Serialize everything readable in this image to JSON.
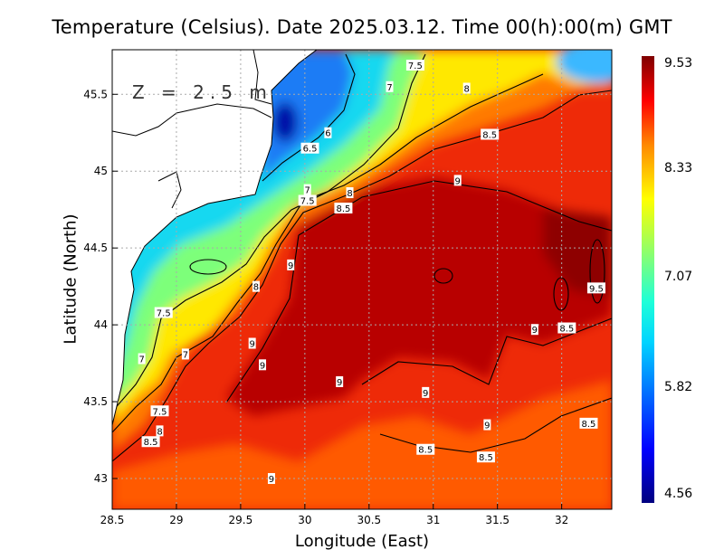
{
  "title": "Temperature (Celsius). Date 2025.03.12. Time 00(h):00(m) GMT",
  "chart_data": {
    "type": "heatmap",
    "title": "Temperature (Celsius). Date 2025.03.12. Time 00(h):00(m) GMT",
    "depth_label": "Z = 2.5 m",
    "xlabel": "Longitude (East)",
    "ylabel": "Latitude (North)",
    "xlim": [
      28.5,
      32.39
    ],
    "ylim": [
      42.8,
      45.79
    ],
    "xticks": [
      "28.5",
      "29",
      "29.5",
      "30",
      "30.5",
      "31",
      "31.5",
      "32"
    ],
    "yticks": [
      "43",
      "43.5",
      "44",
      "44.5",
      "45",
      "45.5"
    ],
    "grid": true,
    "colorbar": {
      "min": 4.56,
      "max": 9.53,
      "labels": [
        "9.53",
        "8.33",
        "7.07",
        "5.82",
        "4.56"
      ],
      "colormap": "jet"
    },
    "contour_labels": [
      {
        "text": "7.5",
        "lon": 30.86,
        "lat": 45.69
      },
      {
        "text": "7",
        "lon": 30.66,
        "lat": 45.55
      },
      {
        "text": "8",
        "lon": 31.26,
        "lat": 45.54
      },
      {
        "text": "6",
        "lon": 30.18,
        "lat": 45.25
      },
      {
        "text": "6.5",
        "lon": 30.04,
        "lat": 45.15
      },
      {
        "text": "8.5",
        "lon": 31.44,
        "lat": 45.24
      },
      {
        "text": "9",
        "lon": 31.19,
        "lat": 44.94
      },
      {
        "text": "7",
        "lon": 30.02,
        "lat": 44.88
      },
      {
        "text": "7.5",
        "lon": 30.02,
        "lat": 44.81
      },
      {
        "text": "8",
        "lon": 30.35,
        "lat": 44.86
      },
      {
        "text": "8.5",
        "lon": 30.3,
        "lat": 44.76
      },
      {
        "text": "9",
        "lon": 29.89,
        "lat": 44.39
      },
      {
        "text": "8",
        "lon": 29.62,
        "lat": 44.25
      },
      {
        "text": "7.5",
        "lon": 28.9,
        "lat": 44.08
      },
      {
        "text": "9.5",
        "lon": 32.27,
        "lat": 44.24
      },
      {
        "text": "9",
        "lon": 31.79,
        "lat": 43.97
      },
      {
        "text": "8.5",
        "lon": 32.04,
        "lat": 43.98
      },
      {
        "text": "9",
        "lon": 29.59,
        "lat": 43.88
      },
      {
        "text": "7",
        "lon": 29.07,
        "lat": 43.81
      },
      {
        "text": "7",
        "lon": 28.73,
        "lat": 43.78
      },
      {
        "text": "9",
        "lon": 29.67,
        "lat": 43.74
      },
      {
        "text": "9",
        "lon": 30.27,
        "lat": 43.63
      },
      {
        "text": "9",
        "lon": 30.94,
        "lat": 43.56
      },
      {
        "text": "7.5",
        "lon": 28.87,
        "lat": 43.44
      },
      {
        "text": "9",
        "lon": 31.42,
        "lat": 43.35
      },
      {
        "text": "8.5",
        "lon": 32.21,
        "lat": 43.36
      },
      {
        "text": "8",
        "lon": 28.87,
        "lat": 43.31
      },
      {
        "text": "8.5",
        "lon": 28.8,
        "lat": 43.24
      },
      {
        "text": "8.5",
        "lon": 30.94,
        "lat": 43.19
      },
      {
        "text": "8.5",
        "lon": 31.41,
        "lat": 43.14
      },
      {
        "text": "9",
        "lon": 29.74,
        "lat": 43.0
      }
    ]
  }
}
